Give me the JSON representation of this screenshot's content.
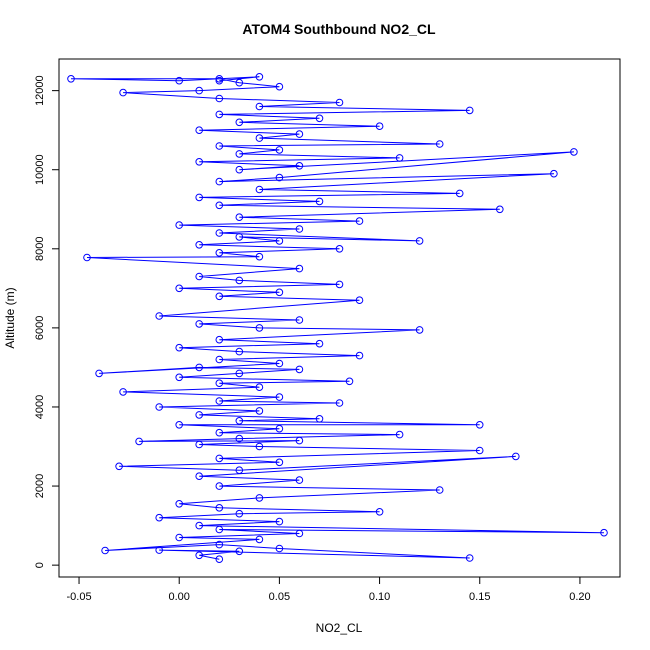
{
  "chart_data": {
    "type": "line",
    "title": "ATOM4 Southbound NO2_CL",
    "xlabel": "NO2_CL",
    "ylabel": "Altitude (m)",
    "xlim": [
      -0.06,
      0.22
    ],
    "ylim": [
      -300,
      12800
    ],
    "x_ticks": [
      -0.05,
      0.0,
      0.05,
      0.1,
      0.15,
      0.2
    ],
    "x_tick_labels": [
      "-0.05",
      "0.00",
      "0.05",
      "0.10",
      "0.15",
      "0.20"
    ],
    "y_ticks": [
      0,
      2000,
      4000,
      6000,
      8000,
      10000,
      12000
    ],
    "y_tick_labels": [
      "0",
      "2000",
      "4000",
      "6000",
      "8000",
      "10000",
      "12000"
    ],
    "grid": false,
    "markers": "open-circle",
    "line_and_points": true,
    "color": "#0000ff",
    "series": [
      {
        "x": [
          0.02,
          0.01,
          0.03,
          -0.01,
          0.145,
          0.05,
          0.02,
          -0.037,
          0.04,
          0.0,
          0.06,
          0.02,
          0.212,
          0.01,
          0.05,
          -0.01,
          0.03,
          0.1,
          0.02,
          0.0,
          0.04,
          0.13,
          0.02,
          0.06,
          0.01,
          0.168,
          0.03,
          -0.03,
          0.05,
          0.02,
          0.15,
          0.04,
          0.01,
          0.06,
          -0.02,
          0.03,
          0.11,
          0.02,
          0.05,
          0.0,
          0.15,
          0.03,
          0.07,
          0.01,
          0.04,
          -0.01,
          0.08,
          0.02,
          0.05,
          -0.028,
          0.04,
          0.02,
          0.085,
          0.0,
          0.03,
          0.06,
          0.01,
          -0.04,
          0.05,
          0.02,
          0.09,
          0.03,
          0.0,
          0.07,
          0.02,
          0.12,
          0.04,
          0.01,
          0.06,
          -0.01,
          0.09,
          0.02,
          0.05,
          0.0,
          0.08,
          0.03,
          0.01,
          0.06,
          -0.046,
          0.04,
          0.02,
          0.08,
          0.01,
          0.05,
          0.03,
          0.12,
          0.02,
          0.06,
          0.0,
          0.09,
          0.03,
          0.16,
          0.02,
          0.07,
          0.01,
          0.14,
          0.04,
          0.187,
          0.02,
          0.05,
          0.197,
          0.03,
          0.06,
          0.01,
          0.11,
          0.03,
          0.05,
          0.02,
          0.13,
          0.04,
          0.06,
          0.01,
          0.1,
          0.03,
          0.07,
          0.02,
          0.145,
          0.04,
          0.08,
          0.02,
          -0.028,
          0.01,
          0.05,
          0.03,
          0.02,
          -0.054,
          0.0,
          0.04,
          0.02
        ],
        "y": [
          150,
          250,
          350,
          380,
          180,
          420,
          520,
          370,
          650,
          700,
          800,
          900,
          820,
          1000,
          1100,
          1200,
          1300,
          1350,
          1450,
          1550,
          1700,
          1900,
          2000,
          2150,
          2250,
          2750,
          2400,
          2500,
          2600,
          2700,
          2900,
          3000,
          3050,
          3150,
          3130,
          3200,
          3300,
          3350,
          3450,
          3550,
          3550,
          3650,
          3700,
          3800,
          3900,
          4000,
          4100,
          4150,
          4250,
          4380,
          4500,
          4600,
          4650,
          4750,
          4850,
          4950,
          5000,
          4850,
          5100,
          5200,
          5300,
          5400,
          5500,
          5600,
          5700,
          5950,
          6000,
          6100,
          6200,
          6300,
          6700,
          6800,
          6900,
          7000,
          7100,
          7200,
          7300,
          7500,
          7780,
          7800,
          7900,
          8000,
          8100,
          8200,
          8300,
          8200,
          8400,
          8500,
          8600,
          8700,
          8800,
          9000,
          9100,
          9200,
          9300,
          9400,
          9500,
          9900,
          9700,
          9800,
          10450,
          10000,
          10100,
          10200,
          10300,
          10400,
          10500,
          10600,
          10650,
          10800,
          10900,
          11000,
          11100,
          11200,
          11300,
          11400,
          11500,
          11600,
          11700,
          11800,
          11950,
          12000,
          12100,
          12200,
          12300,
          12300,
          12250,
          12350,
          12250
        ]
      }
    ]
  }
}
